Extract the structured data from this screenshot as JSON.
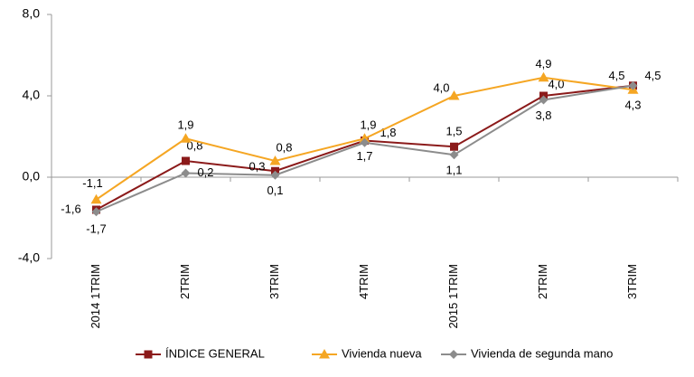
{
  "chart_data": {
    "type": "line",
    "categories": [
      "2014 1TRIM",
      "2TRIM",
      "3TRIM",
      "4TRIM",
      "2015 1TRIM",
      "2TRIM",
      "3TRIM"
    ],
    "series": [
      {
        "name": "ÍNDICE GENERAL",
        "color": "#8b1a1a",
        "marker": "square",
        "values": [
          -1.6,
          0.8,
          0.3,
          1.8,
          1.5,
          4.0,
          4.5
        ],
        "value_labels": [
          "-1,6",
          "0,8",
          "0,3",
          "1,8",
          "1,5",
          "4,0",
          "4,5"
        ]
      },
      {
        "name": "Vivienda nueva",
        "color": "#f5a623",
        "marker": "triangle",
        "values": [
          -1.1,
          1.9,
          0.8,
          1.9,
          4.0,
          4.9,
          4.3
        ],
        "value_labels": [
          "-1,1",
          "1,9",
          "0,8",
          "1,9",
          "4,0",
          "4,9",
          "4,3"
        ]
      },
      {
        "name": "Vivienda de segunda mano",
        "color": "#8c8c8c",
        "marker": "diamond",
        "values": [
          -1.7,
          0.2,
          0.1,
          1.7,
          1.1,
          3.8,
          4.5
        ],
        "value_labels": [
          "-1,7",
          "0,2",
          "0,1",
          "1,7",
          "1,1",
          "3,8",
          "4,5"
        ]
      }
    ],
    "ylim": [
      -4,
      8
    ],
    "yticks": [
      {
        "value": -4,
        "label": "-4,0"
      },
      {
        "value": 0,
        "label": "0,0"
      },
      {
        "value": 4,
        "label": "4,0"
      },
      {
        "value": 8,
        "label": "8,0"
      }
    ],
    "legend": "bottom"
  }
}
